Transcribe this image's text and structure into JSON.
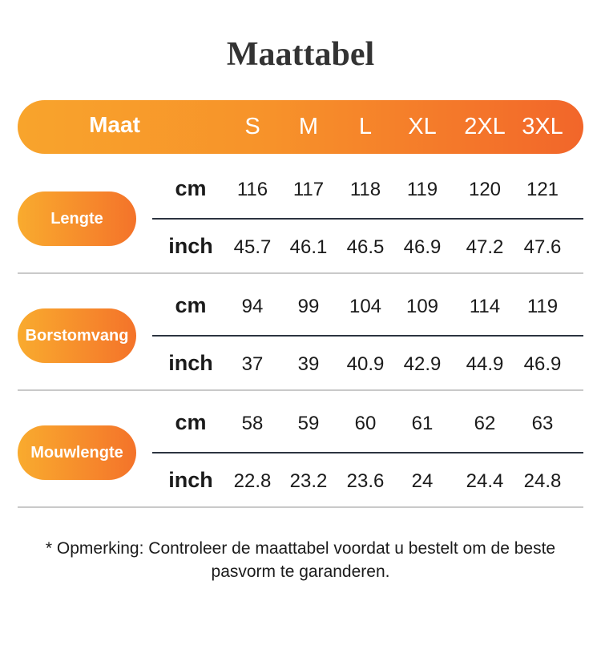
{
  "title": "Maattabel",
  "header": {
    "label": "Maat",
    "sizes": [
      "S",
      "M",
      "L",
      "XL",
      "2XL",
      "3XL"
    ]
  },
  "groups": [
    {
      "label": "Lengte",
      "rows": [
        {
          "unit": "cm",
          "values": [
            116,
            117,
            118,
            119,
            120,
            121
          ]
        },
        {
          "unit": "inch",
          "values": [
            45.7,
            46.1,
            46.5,
            46.9,
            47.2,
            47.6
          ]
        }
      ]
    },
    {
      "label": "Borstomvang",
      "rows": [
        {
          "unit": "cm",
          "values": [
            94,
            99,
            104,
            109,
            114,
            119
          ]
        },
        {
          "unit": "inch",
          "values": [
            37,
            39,
            40.9,
            42.9,
            44.9,
            46.9
          ]
        }
      ]
    },
    {
      "label": "Mouwlengte",
      "rows": [
        {
          "unit": "cm",
          "values": [
            58,
            59,
            60,
            61,
            62,
            63
          ]
        },
        {
          "unit": "inch",
          "values": [
            22.8,
            23.2,
            23.6,
            24,
            24.4,
            24.8
          ]
        }
      ]
    }
  ],
  "note": "* Opmerking: Controleer de maattabel voordat u bestelt om de beste pasvorm te garanderen."
}
